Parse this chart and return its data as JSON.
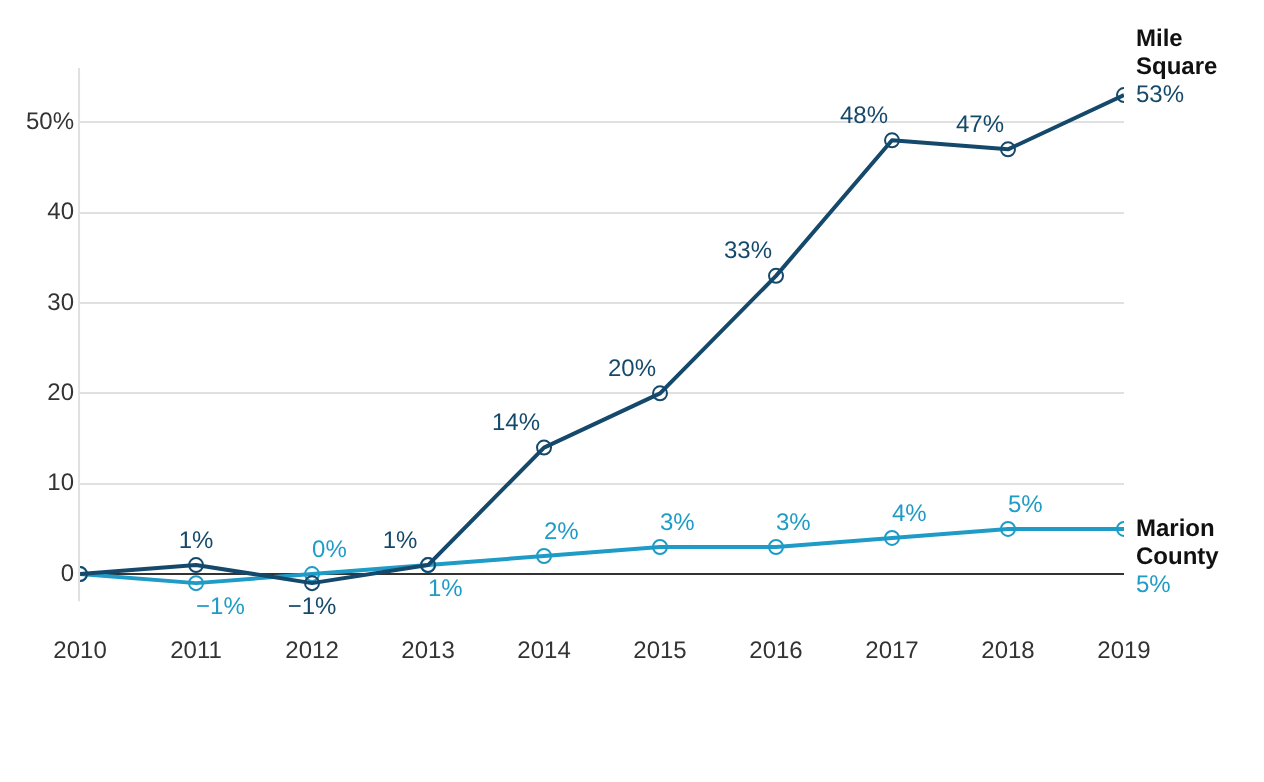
{
  "chart_data": {
    "type": "line",
    "x": [
      2010,
      2011,
      2012,
      2013,
      2014,
      2015,
      2016,
      2017,
      2018,
      2019
    ],
    "xlim": [
      2010,
      2019
    ],
    "xticks": [
      2010,
      2011,
      2012,
      2013,
      2014,
      2015,
      2016,
      2017,
      2018,
      2019
    ],
    "ylim": [
      -3,
      56
    ],
    "yticks": [
      0,
      10,
      20,
      30,
      40,
      {
        "value": 50,
        "label": "50%"
      }
    ],
    "grid": "y",
    "legend": false,
    "marker": "circle",
    "series": [
      {
        "name": "Mile Square",
        "color": "#15496b",
        "values": [
          0,
          1,
          -1,
          1,
          14,
          20,
          33,
          48,
          47,
          53
        ],
        "value_labels": [
          null,
          "1%",
          "−1%",
          "1%",
          "14%",
          "20%",
          "33%",
          "48%",
          "47%",
          "53%"
        ]
      },
      {
        "name": "Marion County",
        "color": "#1e9bc6",
        "values": [
          0,
          -1,
          0,
          1,
          2,
          3,
          3,
          4,
          5,
          5
        ],
        "value_labels": [
          null,
          "−1%",
          "0%",
          "1%",
          "2%",
          "3%",
          "3%",
          "4%",
          "5%",
          "5%"
        ]
      }
    ]
  }
}
